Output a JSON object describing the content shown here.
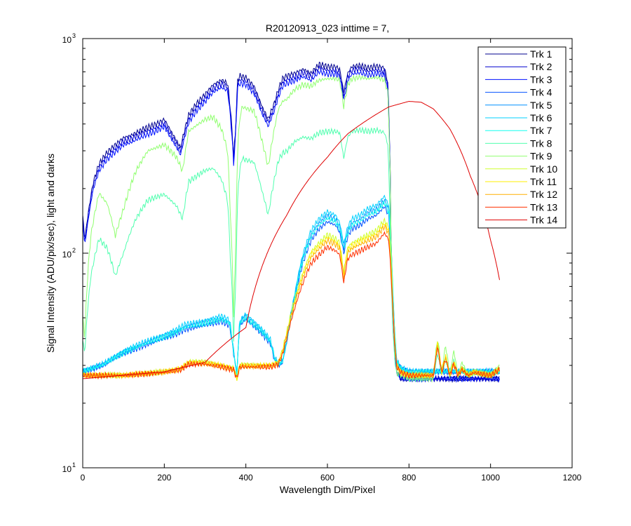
{
  "chart_data": {
    "type": "line",
    "title": "R20120913_023 inttime = 7,",
    "xlabel": "Wavelength Dim/Pixel",
    "ylabel": "Signal Intensity (ADU/pix/sec), light and darks",
    "xlim": [
      0,
      1200
    ],
    "ylim": [
      10,
      1000
    ],
    "yscale": "log",
    "x_ticks": [
      0,
      200,
      400,
      600,
      800,
      1000,
      1200
    ],
    "y_ticks": [
      {
        "value": 10,
        "base": "10",
        "exp": "1"
      },
      {
        "value": 100,
        "base": "10",
        "exp": "2"
      },
      {
        "value": 1000,
        "base": "10",
        "exp": "3"
      }
    ],
    "legend_position": "top-right",
    "series": [
      {
        "name": "Trk 1",
        "color": "#00008f",
        "profile": "A",
        "scale": 1.0
      },
      {
        "name": "Trk 2",
        "color": "#0000cf",
        "profile": "A",
        "scale": 0.96
      },
      {
        "name": "Trk 3",
        "color": "#0010ff",
        "profile": "A",
        "scale": 0.92
      },
      {
        "name": "Trk 4",
        "color": "#0050ff",
        "profile": "C",
        "scale": 1.0
      },
      {
        "name": "Trk 5",
        "color": "#0090ff",
        "profile": "C",
        "scale": 1.08
      },
      {
        "name": "Trk 6",
        "color": "#00d0ff",
        "profile": "C",
        "scale": 1.14
      },
      {
        "name": "Trk 7",
        "color": "#10ffef",
        "profile": "C",
        "scale": 1.05
      },
      {
        "name": "Trk 8",
        "color": "#50ffaf",
        "profile": "B",
        "scale": 0.55
      },
      {
        "name": "Trk 9",
        "color": "#90ff6f",
        "profile": "B",
        "scale": 1.0
      },
      {
        "name": "Trk 10",
        "color": "#d0ff2f",
        "profile": "D",
        "scale": 1.02
      },
      {
        "name": "Trk 11",
        "color": "#ffef00",
        "profile": "D",
        "scale": 0.98
      },
      {
        "name": "Trk 12",
        "color": "#ffaf00",
        "profile": "D",
        "scale": 0.94
      },
      {
        "name": "Trk 13",
        "color": "#ff3000",
        "profile": "D",
        "scale": 0.86
      },
      {
        "name": "Trk 14",
        "color": "#df0000",
        "profile": "E",
        "scale": 1.0
      }
    ],
    "profiles": {
      "A": {
        "x": [
          0,
          5,
          15,
          25,
          40,
          60,
          80,
          100,
          120,
          150,
          180,
          200,
          220,
          240,
          260,
          280,
          300,
          320,
          340,
          355,
          362,
          370,
          375,
          380,
          385,
          400,
          420,
          440,
          455,
          470,
          480,
          490,
          500,
          520,
          540,
          560,
          580,
          600,
          620,
          630,
          640,
          650,
          660,
          680,
          700,
          720,
          740,
          748,
          752,
          756,
          760,
          765,
          770,
          780,
          790,
          800,
          850,
          900,
          950,
          1000,
          1022
        ],
        "y": [
          150,
          115,
          160,
          210,
          260,
          295,
          320,
          345,
          355,
          380,
          400,
          420,
          360,
          310,
          440,
          500,
          550,
          610,
          640,
          620,
          470,
          280,
          380,
          640,
          670,
          660,
          600,
          480,
          420,
          500,
          580,
          650,
          670,
          690,
          720,
          690,
          760,
          740,
          740,
          720,
          560,
          690,
          740,
          750,
          730,
          745,
          730,
          620,
          360,
          120,
          60,
          35,
          28,
          26,
          26,
          26,
          26,
          26,
          26,
          26,
          26
        ]
      },
      "B": {
        "x": [
          0,
          5,
          20,
          40,
          60,
          80,
          100,
          130,
          160,
          200,
          230,
          245,
          260,
          300,
          320,
          340,
          355,
          362,
          370,
          375,
          382,
          390,
          420,
          440,
          455,
          470,
          480,
          490,
          500,
          520,
          540,
          560,
          580,
          600,
          620,
          630,
          640,
          650,
          660,
          680,
          700,
          720,
          740,
          748,
          752,
          756,
          760,
          765,
          770,
          800,
          860,
          870,
          880,
          890,
          900,
          910,
          920,
          930,
          945,
          960,
          1000,
          1022
        ],
        "y": [
          50,
          40,
          120,
          190,
          170,
          120,
          160,
          240,
          300,
          320,
          280,
          240,
          370,
          420,
          430,
          380,
          300,
          150,
          50,
          100,
          370,
          480,
          460,
          330,
          250,
          380,
          470,
          510,
          520,
          580,
          610,
          600,
          640,
          650,
          650,
          640,
          480,
          610,
          650,
          660,
          650,
          660,
          640,
          560,
          330,
          120,
          60,
          36,
          28,
          26,
          26,
          40,
          28,
          37,
          27,
          35,
          27,
          31,
          27,
          28,
          27,
          30
        ]
      },
      "C": {
        "x": [
          0,
          50,
          100,
          150,
          200,
          230,
          250,
          300,
          340,
          360,
          370,
          378,
          385,
          400,
          440,
          460,
          470,
          480,
          490,
          500,
          520,
          540,
          560,
          580,
          600,
          620,
          630,
          640,
          650,
          660,
          680,
          700,
          720,
          740,
          750,
          755,
          760,
          765,
          770,
          780,
          800,
          900,
          1022
        ],
        "y": [
          28,
          30,
          34,
          37,
          40,
          42,
          44,
          46,
          48,
          46,
          34,
          27,
          46,
          49,
          42,
          38,
          32,
          30,
          31,
          38,
          60,
          90,
          115,
          130,
          140,
          135,
          125,
          100,
          120,
          130,
          135,
          145,
          150,
          165,
          150,
          110,
          65,
          40,
          31,
          29,
          28,
          28,
          28
        ]
      },
      "D": {
        "x": [
          0,
          100,
          200,
          240,
          260,
          300,
          340,
          370,
          378,
          385,
          420,
          460,
          480,
          490,
          500,
          520,
          540,
          560,
          580,
          600,
          620,
          630,
          640,
          650,
          660,
          680,
          700,
          720,
          740,
          750,
          755,
          760,
          765,
          770,
          780,
          800,
          860,
          870,
          880,
          890,
          900,
          910,
          920,
          930,
          945,
          960,
          1000,
          1022
        ],
        "y": [
          27,
          27,
          28,
          29,
          31,
          31,
          30,
          29,
          26,
          30,
          30,
          30,
          31,
          35,
          42,
          60,
          80,
          100,
          110,
          120,
          115,
          110,
          80,
          105,
          110,
          115,
          120,
          125,
          140,
          130,
          95,
          60,
          38,
          30,
          28,
          27,
          27,
          38,
          28,
          33,
          27,
          31,
          27,
          29,
          27,
          28,
          27,
          29
        ]
      },
      "E": {
        "x": [
          0,
          100,
          200,
          300,
          400,
          500,
          600,
          650,
          700,
          750,
          800,
          830,
          860,
          900,
          950,
          1000,
          1022
        ],
        "y": [
          26,
          27,
          28,
          31,
          45,
          150,
          280,
          360,
          420,
          480,
          510,
          505,
          470,
          380,
          230,
          115,
          75
        ]
      }
    }
  }
}
